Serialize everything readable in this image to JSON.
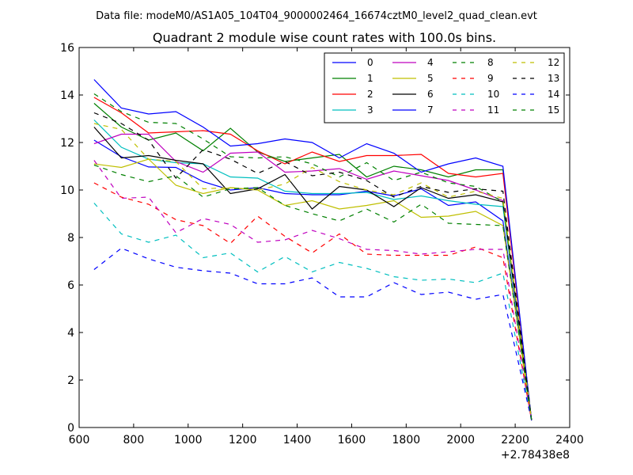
{
  "suptitle": "Data file: modeM0/AS1A05_104T04_9000002464_16674cztM0_level2_quad_clean.evt",
  "chart_data": {
    "type": "line",
    "title": "Quadrant 2 module wise count rates with 100.0s bins.",
    "xlabel": "",
    "ylabel": "",
    "x_offset_label": "+2.78438e8",
    "xlim": [
      600,
      2400
    ],
    "ylim": [
      0,
      16
    ],
    "xticks": [
      600,
      800,
      1000,
      1200,
      1400,
      1600,
      1800,
      2000,
      2200,
      2400
    ],
    "yticks": [
      0,
      2,
      4,
      6,
      8,
      10,
      12,
      14,
      16
    ],
    "grid": false,
    "legend_position": "top-right",
    "x": [
      655,
      755,
      855,
      955,
      1055,
      1155,
      1255,
      1355,
      1455,
      1555,
      1655,
      1755,
      1855,
      1955,
      2055,
      2155,
      2260
    ],
    "series": [
      {
        "name": "0",
        "color": "#0000ff",
        "dash": "solid",
        "values": [
          12.1,
          11.4,
          10.97,
          10.95,
          10.35,
          10.0,
          10.1,
          9.85,
          9.8,
          9.8,
          9.95,
          9.75,
          10.05,
          9.35,
          9.5,
          8.7,
          0.3
        ]
      },
      {
        "name": "1",
        "color": "#008000",
        "dash": "solid",
        "values": [
          13.65,
          12.65,
          12.1,
          12.4,
          11.65,
          12.6,
          11.6,
          11.2,
          11.35,
          11.5,
          10.55,
          11.0,
          10.85,
          10.55,
          10.85,
          10.85,
          0.3
        ]
      },
      {
        "name": "2",
        "color": "#ff0000",
        "dash": "solid",
        "values": [
          13.9,
          13.25,
          12.4,
          12.45,
          12.5,
          12.35,
          11.65,
          11.1,
          11.6,
          11.2,
          11.45,
          11.45,
          11.5,
          10.7,
          10.55,
          10.7,
          0.3
        ]
      },
      {
        "name": "3",
        "color": "#00bfbf",
        "dash": "solid",
        "values": [
          12.95,
          11.8,
          11.3,
          11.15,
          11.1,
          10.55,
          10.5,
          9.95,
          9.85,
          9.85,
          9.9,
          9.6,
          9.75,
          9.55,
          9.4,
          9.3,
          0.3
        ]
      },
      {
        "name": "4",
        "color": "#bf00bf",
        "dash": "solid",
        "values": [
          11.95,
          12.35,
          12.35,
          11.2,
          10.75,
          11.55,
          11.6,
          10.75,
          10.8,
          10.9,
          10.45,
          10.8,
          10.6,
          10.4,
          10.0,
          9.55,
          0.3
        ]
      },
      {
        "name": "5",
        "color": "#bfbf00",
        "dash": "solid",
        "values": [
          11.1,
          10.95,
          11.3,
          10.2,
          9.85,
          10.1,
          10.0,
          9.35,
          9.55,
          9.2,
          9.35,
          9.55,
          8.85,
          8.9,
          9.1,
          8.5,
          0.3
        ]
      },
      {
        "name": "6",
        "color": "#000000",
        "dash": "solid",
        "values": [
          12.65,
          11.35,
          11.45,
          11.25,
          11.1,
          9.85,
          10.05,
          10.65,
          9.2,
          10.15,
          10.0,
          9.3,
          10.1,
          9.65,
          9.8,
          9.5,
          0.3
        ]
      },
      {
        "name": "7",
        "color": "#0000ff",
        "dash": "solid",
        "values": [
          14.65,
          13.45,
          13.2,
          13.3,
          12.65,
          11.85,
          11.95,
          12.15,
          12.0,
          11.35,
          11.95,
          11.55,
          10.75,
          11.1,
          11.35,
          11.0,
          0.3
        ]
      },
      {
        "name": "8",
        "color": "#008000",
        "dash": "dashed",
        "values": [
          14.05,
          13.3,
          12.85,
          12.8,
          12.15,
          11.4,
          11.35,
          11.4,
          11.1,
          10.55,
          11.15,
          10.4,
          10.75,
          10.3,
          10.15,
          9.5,
          0.3
        ]
      },
      {
        "name": "9",
        "color": "#ff0000",
        "dash": "dashed",
        "values": [
          10.3,
          9.7,
          9.4,
          8.75,
          8.5,
          7.75,
          8.9,
          8.05,
          7.35,
          8.15,
          7.3,
          7.25,
          7.25,
          7.25,
          7.6,
          7.15,
          0.3
        ]
      },
      {
        "name": "10",
        "color": "#00bfbf",
        "dash": "dashed",
        "values": [
          9.45,
          8.15,
          7.8,
          8.1,
          7.15,
          7.35,
          6.55,
          7.2,
          6.55,
          6.95,
          6.7,
          6.35,
          6.2,
          6.25,
          6.1,
          6.5,
          0.3
        ]
      },
      {
        "name": "11",
        "color": "#bf00bf",
        "dash": "dashed",
        "values": [
          11.25,
          9.65,
          9.7,
          8.2,
          8.8,
          8.55,
          7.8,
          7.9,
          8.3,
          7.95,
          7.5,
          7.45,
          7.3,
          7.4,
          7.5,
          7.5,
          0.3
        ]
      },
      {
        "name": "12",
        "color": "#bfbf00",
        "dash": "dashed",
        "values": [
          12.8,
          12.55,
          11.3,
          11.2,
          10.05,
          10.1,
          10.0,
          10.25,
          10.95,
          10.35,
          10.0,
          9.8,
          10.3,
          9.7,
          9.95,
          9.65,
          0.3
        ]
      },
      {
        "name": "13",
        "color": "#000000",
        "dash": "dashed",
        "values": [
          13.25,
          12.8,
          12.1,
          10.5,
          11.7,
          11.3,
          10.7,
          11.2,
          10.6,
          10.75,
          10.4,
          9.7,
          10.15,
          9.9,
          10.05,
          9.95,
          0.3
        ]
      },
      {
        "name": "14",
        "color": "#0000ff",
        "dash": "dashed",
        "values": [
          6.65,
          7.55,
          7.1,
          6.75,
          6.6,
          6.5,
          6.05,
          6.05,
          6.3,
          5.5,
          5.5,
          6.1,
          5.6,
          5.7,
          5.4,
          5.6,
          0.3
        ]
      },
      {
        "name": "15",
        "color": "#008000",
        "dash": "dashed",
        "values": [
          11.05,
          10.65,
          10.35,
          10.6,
          9.7,
          10.05,
          10.1,
          9.35,
          9.0,
          8.7,
          9.2,
          8.65,
          9.4,
          8.6,
          8.55,
          8.5,
          0.3
        ]
      }
    ]
  }
}
